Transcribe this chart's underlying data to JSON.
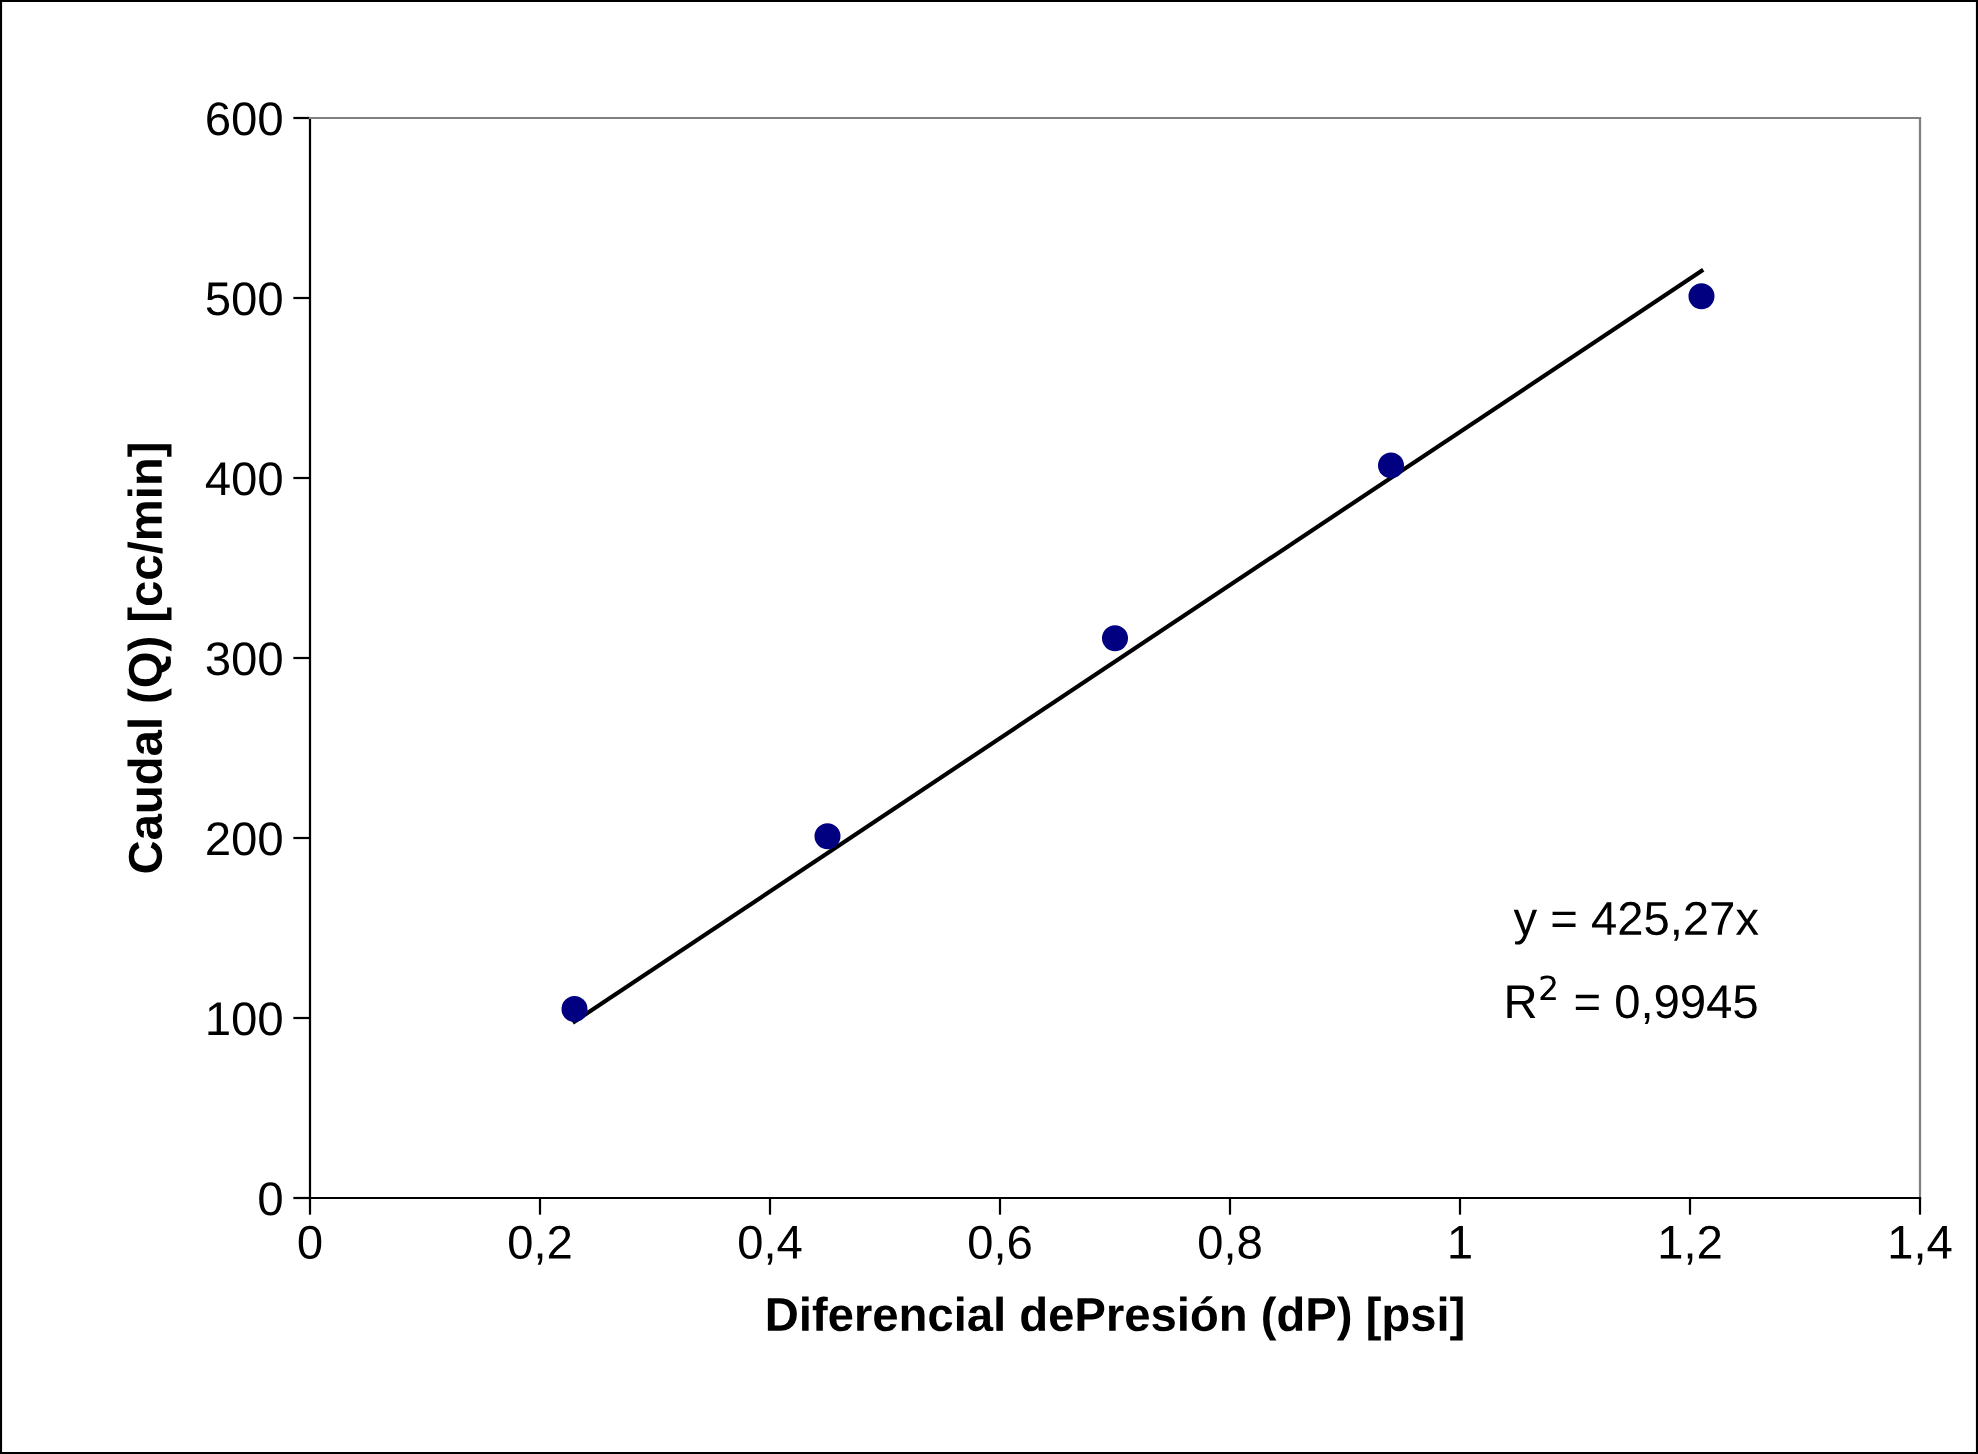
{
  "chart_data": {
    "type": "scatter",
    "xlabel": "Diferencial dePresión (dP) [psi]",
    "ylabel": "Caudal (Q) [cc/min]",
    "series": [
      {
        "color": "#000080",
        "marker": "circle",
        "x": [
          0.23,
          0.45,
          0.7,
          0.94,
          1.21
        ],
        "values": [
          105,
          201,
          311,
          407,
          501
        ]
      },
      {
        "type": "line",
        "color": "#000000",
        "marker": "none",
        "line_style": "solid",
        "x": [
          0.23,
          1.21
        ],
        "values": [
          98,
          515
        ]
      }
    ],
    "annotations": [
      "y = 425,27x",
      "R$^{2}$ = 0,9945"
    ],
    "xlim": [
      0,
      1.4
    ],
    "xticks": [
      0,
      {
        "value": 0.2,
        "label": "0,2"
      },
      {
        "value": 0.4,
        "label": "0,4"
      },
      {
        "value": 0.6,
        "label": "0,6"
      },
      {
        "value": 0.8,
        "label": "0,8"
      },
      1,
      {
        "value": 1.2,
        "label": "1,2"
      },
      {
        "value": 1.4,
        "label": "1,4"
      }
    ],
    "ylim": [
      0,
      600
    ],
    "yticks": [
      0,
      100,
      200,
      300,
      400,
      500,
      600
    ],
    "grid": false,
    "legend": false
  }
}
